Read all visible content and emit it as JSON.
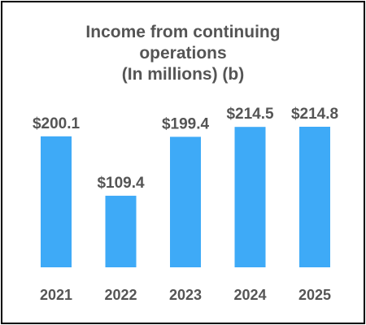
{
  "chart_data": {
    "type": "bar",
    "title_lines": [
      "Income from continuing",
      "operations",
      "(In millions) (b)"
    ],
    "categories": [
      "2021",
      "2022",
      "2023",
      "2024",
      "2025"
    ],
    "values": [
      200.1,
      109.4,
      199.4,
      214.5,
      214.8
    ],
    "data_labels": [
      "$200.1",
      "$109.4",
      "$199.4",
      "$214.5",
      "$214.8"
    ],
    "xlabel": "",
    "ylabel": "",
    "ylim": [
      0,
      214.8
    ],
    "grid": false,
    "legend": "none",
    "bar_color": "#3eaaf7",
    "text_color": "#555555"
  }
}
